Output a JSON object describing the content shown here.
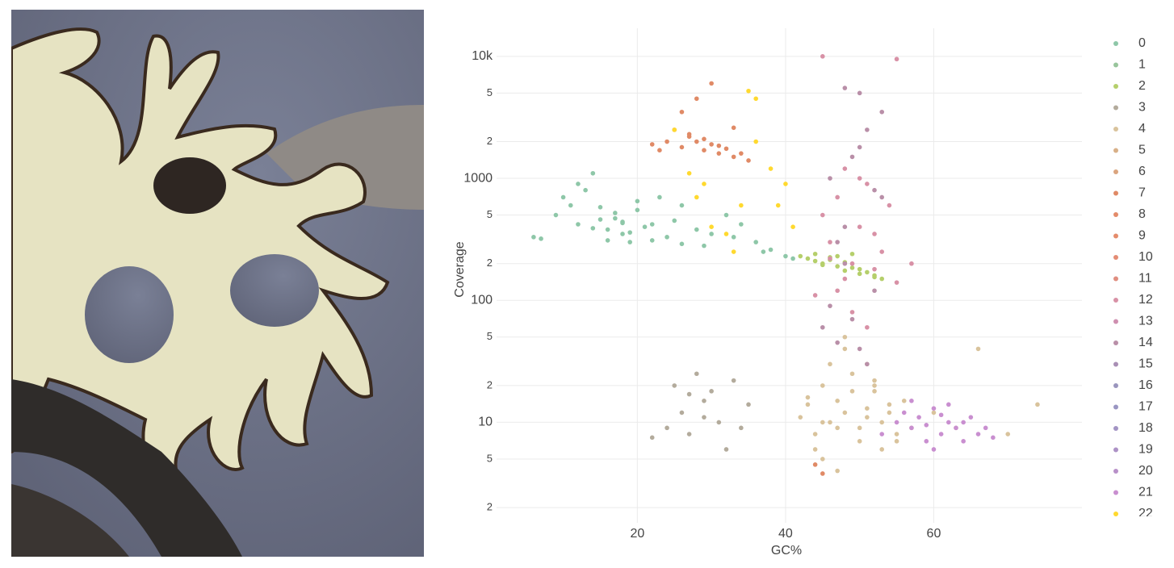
{
  "chart_data": {
    "type": "scatter",
    "x_label": "GC%",
    "y_label": "Coverage",
    "log_y": true,
    "grid": true,
    "xlim": [
      1,
      80
    ],
    "xticks": [
      20,
      40,
      60
    ],
    "ylim": [
      1.5,
      17000
    ],
    "yticks": [
      2,
      5,
      10,
      {
        "value": 20,
        "label": "2"
      },
      {
        "value": 50,
        "label": "5"
      },
      100,
      {
        "value": 200,
        "label": "2"
      },
      {
        "value": 500,
        "label": "5"
      },
      1000,
      {
        "value": 2000,
        "label": "2"
      },
      {
        "value": 5000,
        "label": "5"
      },
      {
        "value": 10000,
        "label": "10k"
      }
    ],
    "series": [
      {
        "name": "0",
        "color": "#8ec7a8",
        "x": [
          6,
          7,
          9,
          10,
          11,
          12,
          13,
          14,
          15,
          16,
          17,
          18,
          18,
          19,
          20,
          21,
          22,
          23,
          24,
          25,
          26,
          28,
          30,
          32,
          34,
          36,
          38,
          40,
          12,
          15,
          17,
          19,
          22,
          26,
          29,
          33,
          37,
          41,
          14,
          16,
          18,
          20
        ],
        "values": [
          330,
          320,
          500,
          700,
          600,
          420,
          800,
          1100,
          460,
          380,
          520,
          430,
          350,
          300,
          650,
          400,
          310,
          700,
          330,
          450,
          290,
          380,
          350,
          500,
          420,
          300,
          260,
          230,
          900,
          580,
          470,
          360,
          420,
          600,
          280,
          330,
          250,
          220,
          390,
          310,
          440,
          550
        ]
      },
      {
        "name": "1",
        "color": "#98c59c",
        "x": [],
        "values": []
      },
      {
        "name": "2",
        "color": "#b5cf6b",
        "x": [
          42,
          43,
          44,
          45,
          46,
          47,
          48,
          49,
          50,
          51,
          52,
          53,
          47,
          49,
          45,
          48,
          50,
          52,
          44,
          46
        ],
        "values": [
          230,
          220,
          210,
          200,
          215,
          190,
          205,
          185,
          180,
          170,
          160,
          150,
          230,
          240,
          195,
          175,
          165,
          155,
          240,
          225
        ]
      },
      {
        "name": "3",
        "color": "#b3ab9c",
        "x": [
          22,
          24,
          25,
          26,
          27,
          28,
          29,
          30,
          31,
          32,
          33,
          34,
          35,
          27,
          29
        ],
        "values": [
          7.5,
          9,
          20,
          12,
          8,
          25,
          15,
          18,
          10,
          6,
          22,
          9,
          14,
          17,
          11
        ]
      },
      {
        "name": "4",
        "color": "#d9c39c",
        "x": [
          42,
          43,
          44,
          45,
          46,
          47,
          48,
          49,
          50,
          51,
          52,
          53,
          54,
          55,
          56,
          57,
          44,
          46,
          48,
          50,
          52,
          54,
          45,
          47,
          49,
          51,
          53,
          43,
          47,
          51,
          55,
          60,
          63,
          66,
          70,
          74,
          45,
          48,
          52
        ],
        "values": [
          11,
          14,
          8,
          20,
          10,
          15,
          12,
          25,
          9,
          13,
          18,
          10,
          12,
          8,
          15,
          9,
          6,
          30,
          40,
          7,
          20,
          14,
          5,
          9,
          18,
          11,
          6,
          16,
          4,
          30,
          7,
          12,
          9,
          40,
          8,
          14,
          10,
          50,
          22
        ]
      },
      {
        "name": "5",
        "color": "#d8b088",
        "x": [],
        "values": []
      },
      {
        "name": "6",
        "color": "#dba57e",
        "x": [],
        "values": []
      },
      {
        "name": "7",
        "color": "#e08a66",
        "x": [
          22,
          24,
          25,
          26,
          27,
          28,
          29,
          30,
          31,
          32,
          33,
          34,
          35,
          26,
          28,
          30,
          33,
          29,
          31,
          27,
          44,
          45,
          23
        ],
        "values": [
          1900,
          2000,
          2500,
          1800,
          2200,
          2000,
          1700,
          1900,
          1600,
          1750,
          1500,
          1600,
          1400,
          3500,
          4500,
          6000,
          2600,
          2100,
          1850,
          2300,
          4.5,
          3.8,
          1700
        ]
      },
      {
        "name": "8",
        "color": "#e38b6a",
        "x": [],
        "values": []
      },
      {
        "name": "9",
        "color": "#e58c6c",
        "x": [],
        "values": []
      },
      {
        "name": "10",
        "color": "#e48c74",
        "x": [],
        "values": []
      },
      {
        "name": "11",
        "color": "#e08e80",
        "x": [],
        "values": []
      },
      {
        "name": "12",
        "color": "#d891a6",
        "x": [
          45,
          46,
          47,
          48,
          49,
          50,
          51,
          52,
          53,
          54,
          48,
          50,
          46,
          52,
          47,
          49,
          51,
          55,
          57,
          44,
          45,
          55
        ],
        "values": [
          500,
          300,
          700,
          1200,
          200,
          400,
          900,
          350,
          250,
          600,
          150,
          1000,
          220,
          180,
          120,
          80,
          60,
          140,
          200,
          110,
          10000,
          9500
        ]
      },
      {
        "name": "13",
        "color": "#cf8fb0",
        "x": [],
        "values": []
      },
      {
        "name": "14",
        "color": "#b98fa8",
        "x": [
          45,
          46,
          47,
          48,
          49,
          50,
          51,
          52,
          53,
          48,
          50,
          52,
          47,
          49,
          51,
          46,
          48,
          50,
          53
        ],
        "values": [
          60,
          90,
          300,
          400,
          1500,
          5000,
          2500,
          800,
          3500,
          200,
          40,
          120,
          45,
          70,
          30,
          1000,
          5500,
          1800,
          700
        ]
      },
      {
        "name": "15",
        "color": "#a98fb5",
        "x": [],
        "values": []
      },
      {
        "name": "16",
        "color": "#9a95bd",
        "x": [],
        "values": []
      },
      {
        "name": "17",
        "color": "#9a96c2",
        "x": [],
        "values": []
      },
      {
        "name": "18",
        "color": "#a394c4",
        "x": [],
        "values": []
      },
      {
        "name": "19",
        "color": "#ad92c6",
        "x": [],
        "values": []
      },
      {
        "name": "20",
        "color": "#b890c9",
        "x": [],
        "values": []
      },
      {
        "name": "21",
        "color": "#c98fd0",
        "x": [
          53,
          55,
          56,
          57,
          58,
          59,
          60,
          61,
          62,
          63,
          64,
          65,
          66,
          67,
          68,
          57,
          60,
          62,
          64,
          59,
          61
        ],
        "values": [
          8,
          10,
          12,
          9,
          11,
          7,
          13,
          8,
          10,
          9,
          7,
          11,
          8,
          9,
          7.5,
          15,
          6,
          14,
          10,
          9.5,
          11.5
        ]
      },
      {
        "name": "22",
        "color": "#ffd92f",
        "x": [
          25,
          27,
          28,
          30,
          32,
          34,
          35,
          36,
          36,
          38,
          39,
          40,
          41,
          33,
          29
        ],
        "values": [
          2500,
          1100,
          700,
          400,
          350,
          600,
          5200,
          4500,
          2000,
          1200,
          600,
          900,
          400,
          250,
          900
        ]
      }
    ]
  }
}
